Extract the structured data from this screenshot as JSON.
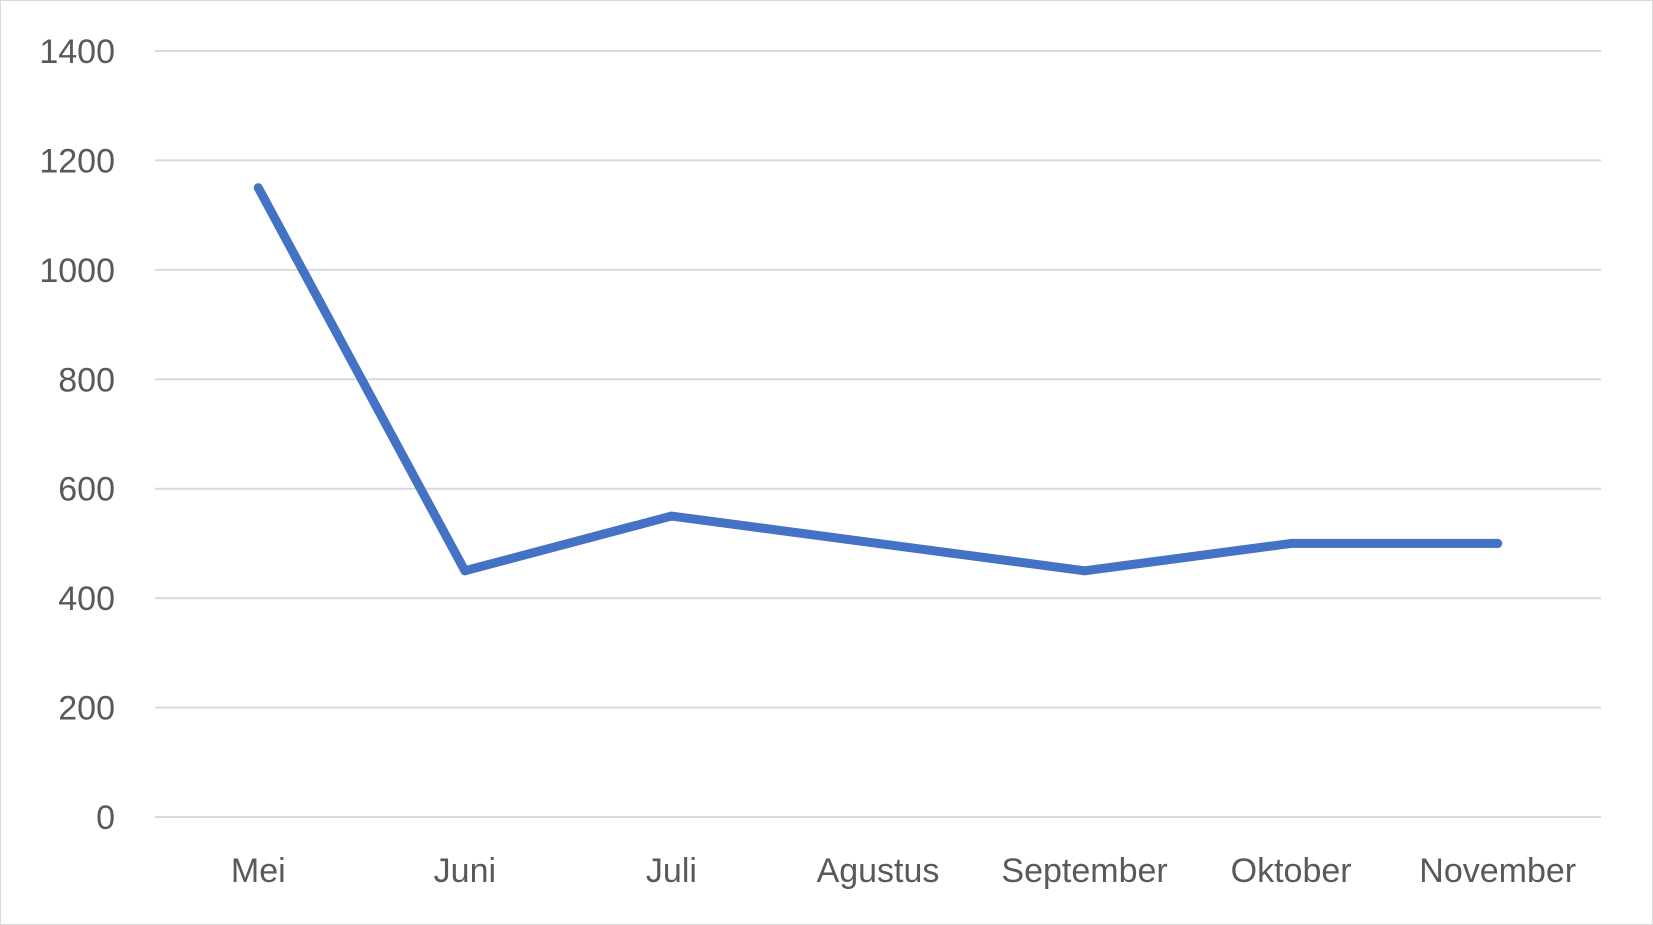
{
  "chart_data": {
    "type": "line",
    "categories": [
      "Mei",
      "Juni",
      "Juli",
      "Agustus",
      "September",
      "Oktober",
      "November"
    ],
    "series": [
      {
        "values": [
          1150,
          450,
          550,
          500,
          450,
          500,
          500
        ],
        "color": "#4472c4"
      }
    ],
    "ylim": [
      0,
      1400
    ],
    "yticks": [
      0,
      200,
      400,
      600,
      800,
      1000,
      1200,
      1400
    ],
    "grid": true,
    "legend": "none"
  }
}
